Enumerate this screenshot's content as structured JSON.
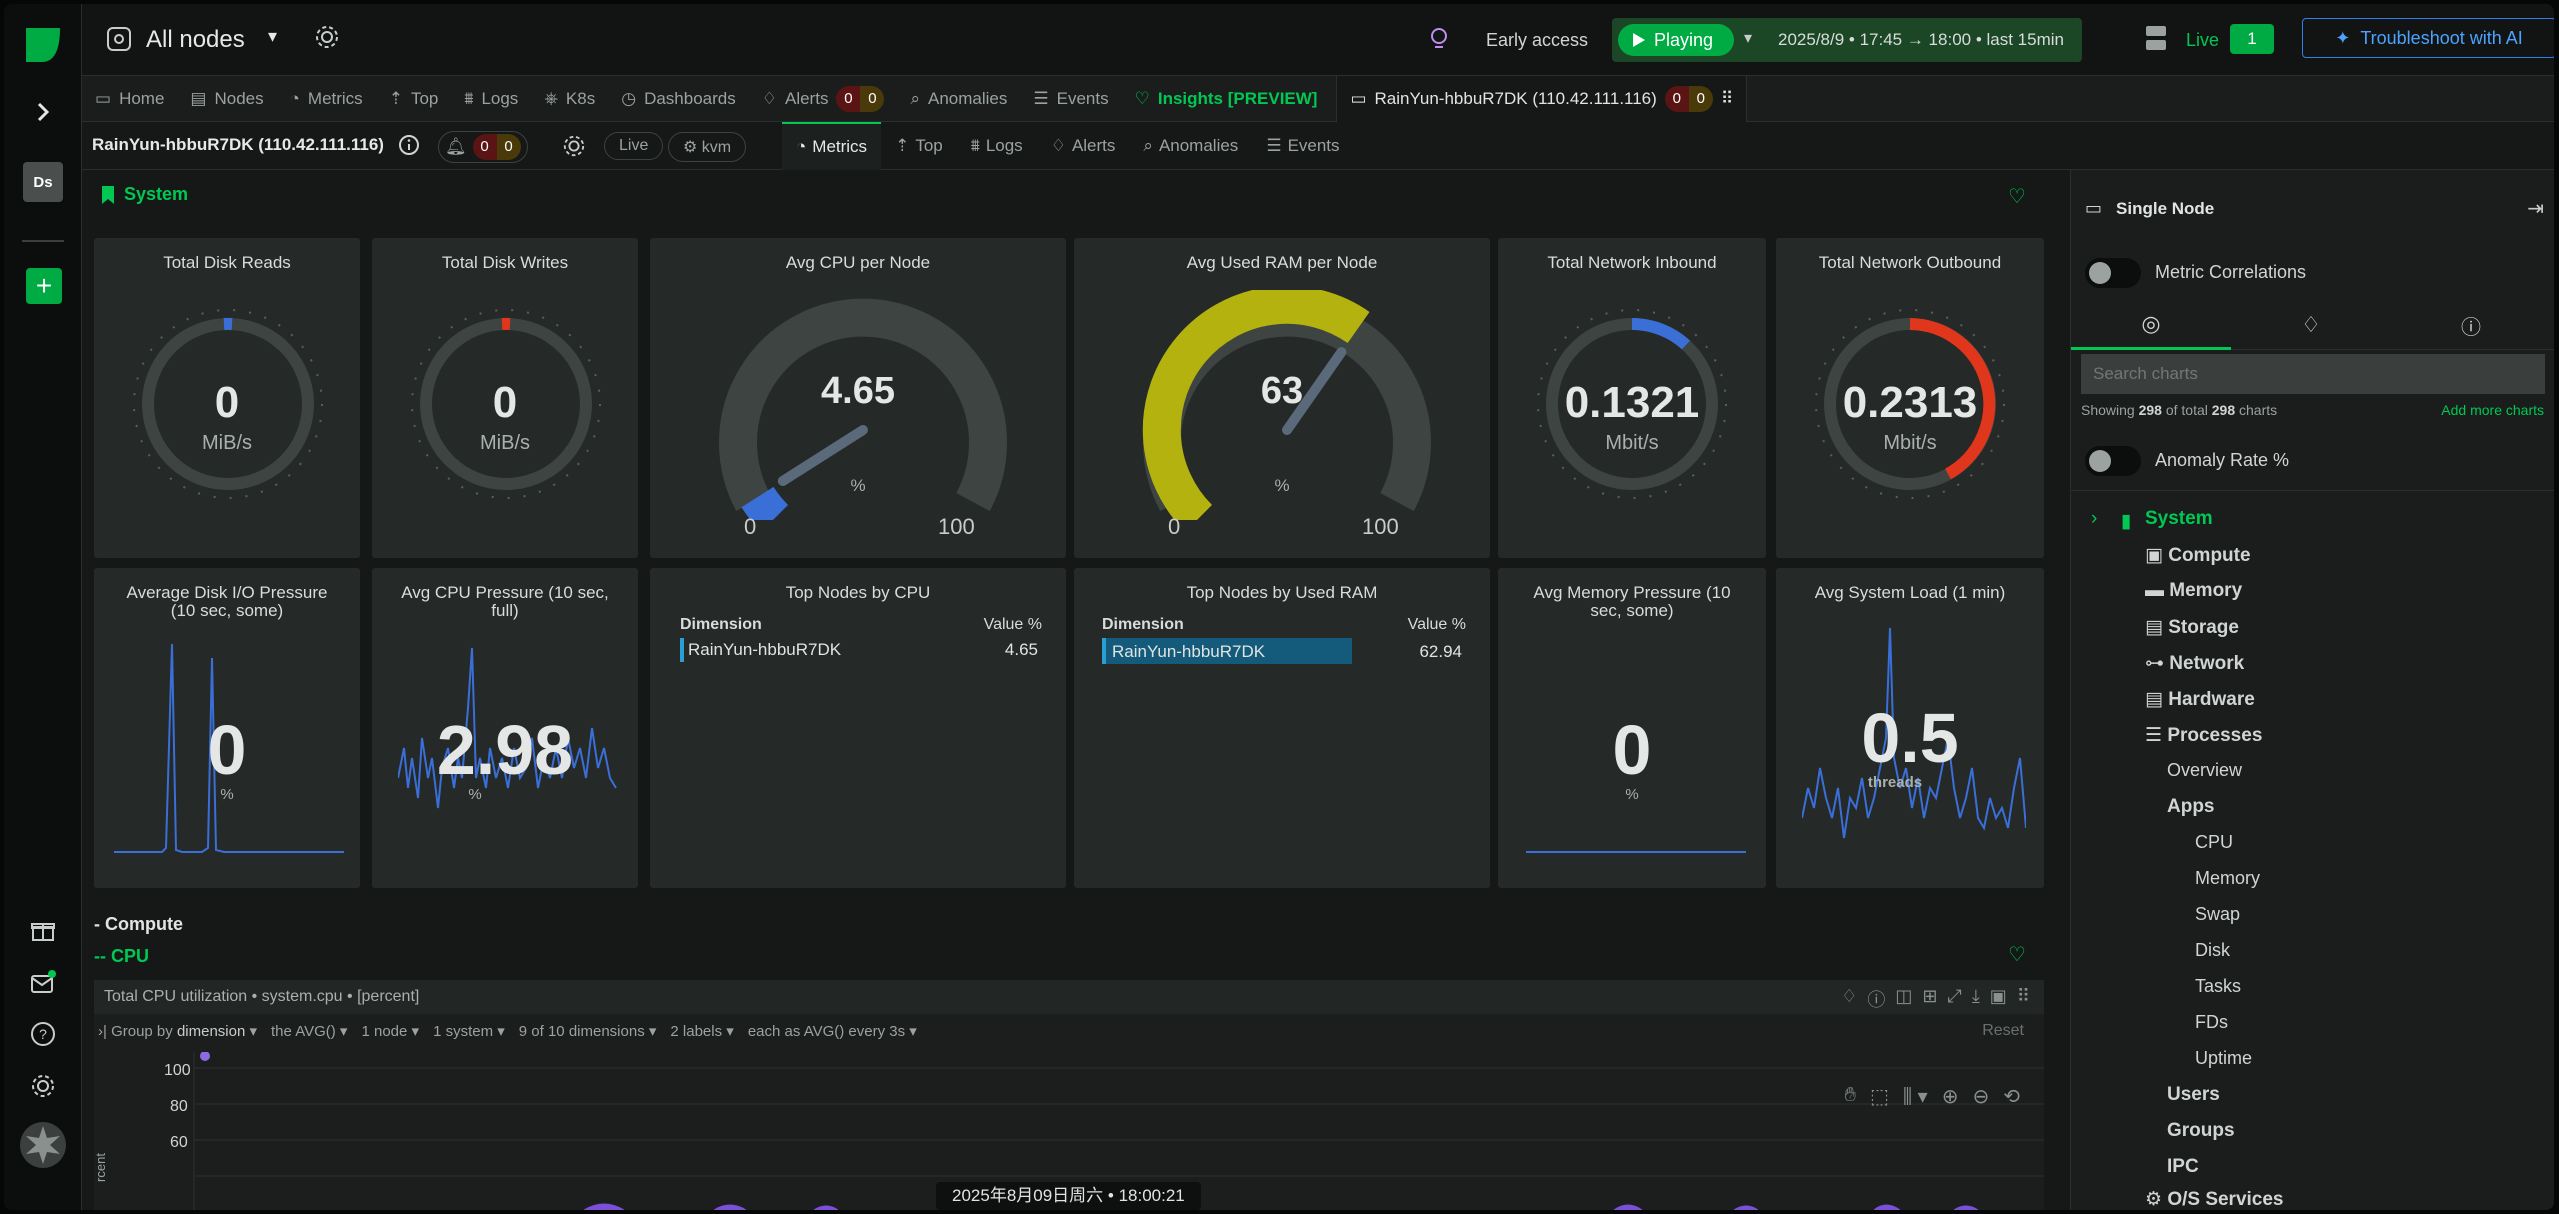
{
  "header": {
    "space_title": "All nodes",
    "early_access": "Early access",
    "playing": "Playing",
    "timerange": "2025/8/9 • 17:45 → 18:00 • last  15min",
    "live_label": "Live",
    "live_count": "1",
    "troubleshoot": "Troubleshoot with AI"
  },
  "left_nav": {
    "avatar": "Ds"
  },
  "tabs": [
    {
      "label": "Home",
      "icon": "home-icon"
    },
    {
      "label": "Nodes",
      "icon": "nodes-icon"
    },
    {
      "label": "Metrics",
      "icon": "metrics-icon"
    },
    {
      "label": "Top",
      "icon": "top-icon"
    },
    {
      "label": "Logs",
      "icon": "logs-icon"
    },
    {
      "label": "K8s",
      "icon": "k8s-icon"
    },
    {
      "label": "Dashboards",
      "icon": "dashboards-icon"
    },
    {
      "label": "Alerts",
      "icon": "alerts-icon"
    },
    {
      "label": "Anomalies",
      "icon": "anomalies-icon"
    },
    {
      "label": "Events",
      "icon": "events-icon"
    },
    {
      "label": "Insights [PREVIEW]",
      "icon": "insights-icon"
    }
  ],
  "alerts_badge": {
    "critical": "0",
    "warning": "0"
  },
  "node_tab": {
    "label": "RainYun-hbbuR7DK (110.42.111.116)",
    "critical": "0",
    "warning": "0"
  },
  "node_bar": {
    "title": "RainYun-hbbuR7DK (110.42.111.116)",
    "critical": "0",
    "warning": "0",
    "live": "Live",
    "kvm": "kvm",
    "subtabs": [
      "Metrics",
      "Top",
      "Logs",
      "Alerts",
      "Anomalies",
      "Events"
    ]
  },
  "section": {
    "system": "System",
    "compute": "- Compute",
    "cpu": "-- CPU"
  },
  "cards_row1": [
    {
      "title": "Total Disk Reads",
      "value": "0",
      "unit": "MiB/s"
    },
    {
      "title": "Total Disk Writes",
      "value": "0",
      "unit": "MiB/s"
    },
    {
      "title": "Avg CPU per Node",
      "value": "4.65",
      "unit": "%",
      "min": "0",
      "max": "100",
      "level": 4.65
    },
    {
      "title": "Avg Used RAM per Node",
      "value": "63",
      "unit": "%",
      "min": "0",
      "max": "100",
      "level": 62.94
    },
    {
      "title": "Total Network Inbound",
      "value": "0.1321",
      "unit": "Mbit/s"
    },
    {
      "title": "Total Network Outbound",
      "value": "0.2313",
      "unit": "Mbit/s"
    }
  ],
  "cards_row2": [
    {
      "title": "Average Disk I/O Pressure (10 sec, some)",
      "value": "0",
      "unit": "%"
    },
    {
      "title": "Avg CPU Pressure (10 sec, full)",
      "value": "2.98",
      "unit": "%"
    },
    {
      "title": "Top Nodes by CPU",
      "dim_header": "Dimension",
      "val_header": "Value %",
      "row_name": "RainYun-hbbuR7DK",
      "row_value": "4.65"
    },
    {
      "title": "Top Nodes by Used RAM",
      "dim_header": "Dimension",
      "val_header": "Value %",
      "row_name": "RainYun-hbbuR7DK",
      "row_value": "62.94"
    },
    {
      "title": "Avg Memory Pressure (10 sec, some)",
      "value": "0",
      "unit": "%"
    },
    {
      "title": "Avg System Load (1 min)",
      "value": "0.5",
      "unit": "threads"
    }
  ],
  "cpu_chart": {
    "title": "Total CPU utilization • system.cpu • [percent]",
    "group_by": "Group by",
    "dimension": "dimension",
    "agg": "the AVG()",
    "nodes": "1 node",
    "systems": "1 system",
    "dims": "9 of 10 dimensions",
    "labels": "2 labels",
    "each": "each as AVG() every 3s",
    "reset": "Reset",
    "yticks": [
      "100",
      "80",
      "60"
    ],
    "ylabel": "rcent"
  },
  "timestamp": "2025年8月09日周六 • 18:00:21",
  "right_panel": {
    "single_node": "Single Node",
    "metric_correlations": "Metric Correlations",
    "search_placeholder": "Search charts",
    "showing_prefix": "Showing ",
    "showing_count": "298",
    "showing_mid": " of total ",
    "showing_total": "298",
    "showing_suffix": " charts",
    "add_more": "Add more charts",
    "anomaly_rate": "Anomaly Rate %",
    "tree": {
      "system": "System",
      "compute": "Compute",
      "memory": "Memory",
      "storage": "Storage",
      "network": "Network",
      "hardware": "Hardware",
      "processes": "Processes",
      "overview": "Overview",
      "apps": "Apps",
      "cpu": "CPU",
      "mem": "Memory",
      "swap": "Swap",
      "disk": "Disk",
      "tasks": "Tasks",
      "fds": "FDs",
      "uptime": "Uptime",
      "users": "Users",
      "groups": "Groups",
      "ipc": "IPC",
      "os_services": "O/S Services"
    }
  },
  "colors": {
    "accent": "#00c853",
    "gauge_track": "#3e4442",
    "ram_gauge": "#b3b20f",
    "cpu_gauge": "#3a6fd8",
    "outbound": "#e0361c",
    "chart_line": "#3a6fd8"
  }
}
